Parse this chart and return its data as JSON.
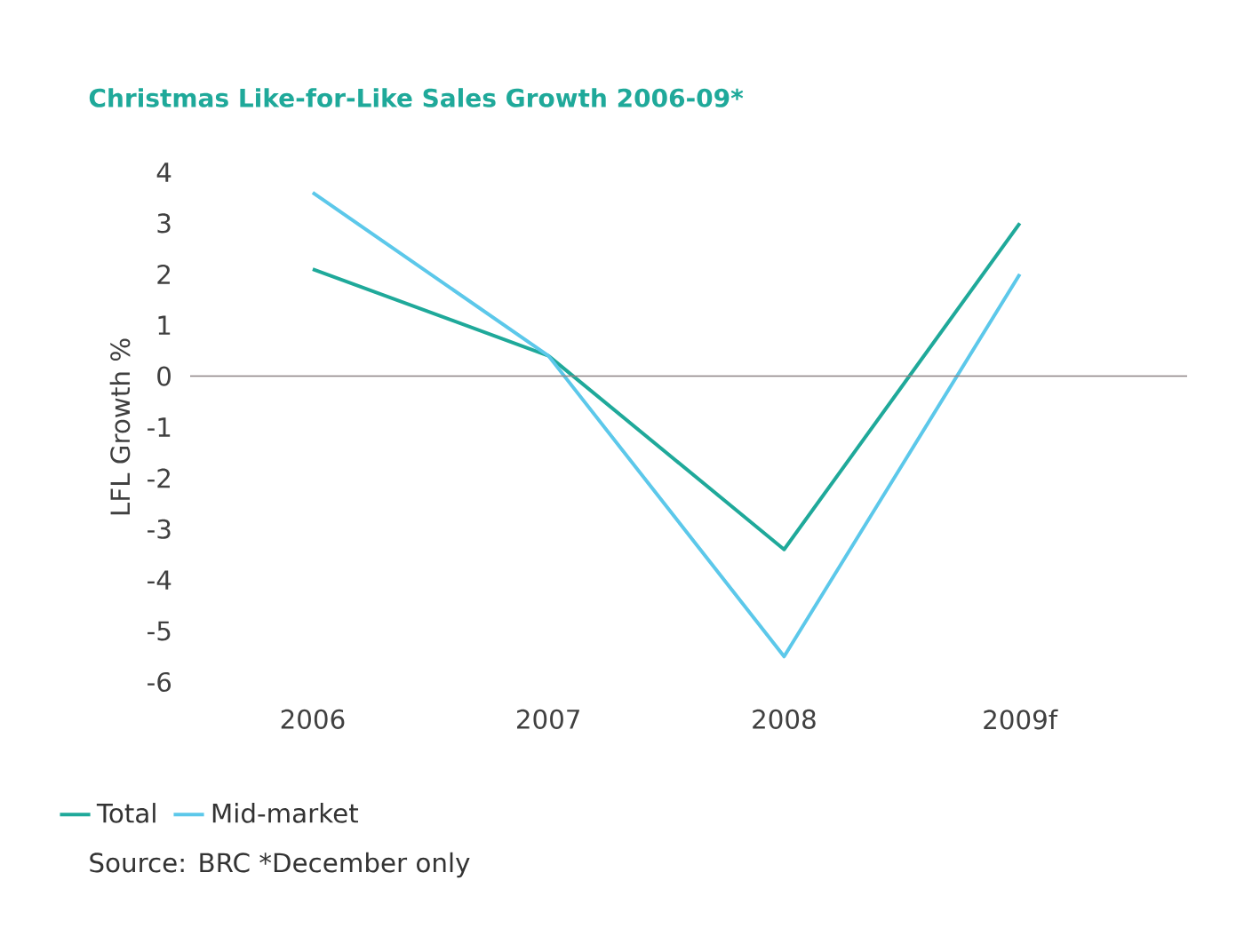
{
  "chart_data": {
    "type": "line",
    "title": "Christmas Like-for-Like Sales Growth 2006-09*",
    "ylabel": "LFL Growth %",
    "categories": [
      "2006",
      "2007",
      "2008",
      "2009f"
    ],
    "series": [
      {
        "name": "Total",
        "color": "#1fa99a",
        "values": [
          2.1,
          0.4,
          -3.4,
          3.0
        ]
      },
      {
        "name": "Mid-market",
        "color": "#5cc8ea",
        "values": [
          3.6,
          0.4,
          -5.5,
          2.0
        ]
      }
    ],
    "ylim": [
      -6,
      4
    ],
    "yticks": [
      -6,
      -5,
      -4,
      -3,
      -2,
      -1,
      0,
      1,
      2,
      3,
      4
    ],
    "ref_lines": [
      {
        "axis": "y",
        "value": 0,
        "color": "#8c8284"
      }
    ],
    "grid": false,
    "legend": "bottom left",
    "marker": "none",
    "line_style": "solid",
    "annotations": [
      "Source: BRC   *December only"
    ]
  }
}
